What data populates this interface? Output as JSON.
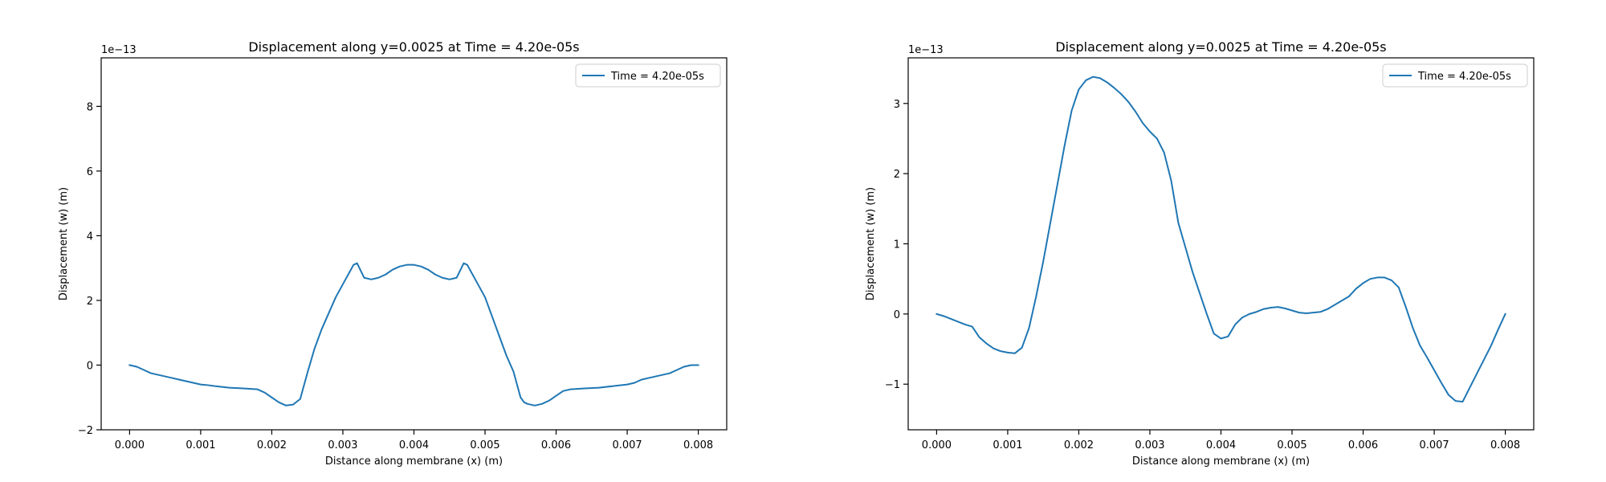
{
  "colors": {
    "line": "#1f77b4",
    "axes": "#000000",
    "legend_border": "#cccccc"
  },
  "chart_data": [
    {
      "type": "line",
      "title": "Displacement along y=0.0025 at Time = 4.20e-05s",
      "xlabel": "Distance along membrane (x) (m)",
      "ylabel": "Displacement (w) (m)",
      "offset_label": "1e−13",
      "xlim": [
        -0.0004,
        0.0084
      ],
      "ylim": [
        -2.0,
        9.5
      ],
      "xticks": [
        0.0,
        0.001,
        0.002,
        0.003,
        0.004,
        0.005,
        0.006,
        0.007,
        0.008
      ],
      "xtick_labels": [
        "0.000",
        "0.001",
        "0.002",
        "0.003",
        "0.004",
        "0.005",
        "0.006",
        "0.007",
        "0.008"
      ],
      "yticks": [
        -2,
        0,
        2,
        4,
        6,
        8
      ],
      "ytick_labels": [
        "−2",
        "0",
        "2",
        "4",
        "6",
        "8"
      ],
      "legend_position": "upper right",
      "series": [
        {
          "name": "Time = 4.20e-05s",
          "x": [
            0.0,
            0.0001,
            0.0002,
            0.0003,
            0.0004,
            0.0005,
            0.0006,
            0.0007,
            0.0008,
            0.0009,
            0.001,
            0.0011,
            0.0012,
            0.0014,
            0.0016,
            0.0018,
            0.0019,
            0.002,
            0.0021,
            0.0022,
            0.0023,
            0.0024,
            0.0025,
            0.0026,
            0.0027,
            0.0028,
            0.0029,
            0.003,
            0.0031,
            0.00315,
            0.0032,
            0.0033,
            0.0034,
            0.0035,
            0.0036,
            0.0037,
            0.0038,
            0.0039,
            0.004,
            0.0041,
            0.0042,
            0.0043,
            0.0044,
            0.0045,
            0.0046,
            0.0047,
            0.00475,
            0.0048,
            0.0049,
            0.005,
            0.0051,
            0.0052,
            0.0053,
            0.0054,
            0.0055,
            0.00555,
            0.0056,
            0.0057,
            0.0058,
            0.0059,
            0.006,
            0.0061,
            0.0062,
            0.0064,
            0.0066,
            0.0068,
            0.007,
            0.0071,
            0.0072,
            0.0073,
            0.0074,
            0.0075,
            0.0076,
            0.0077,
            0.0078,
            0.0079,
            0.008
          ],
          "y": [
            0.0,
            -0.05,
            -0.15,
            -0.25,
            -0.3,
            -0.35,
            -0.4,
            -0.45,
            -0.5,
            -0.55,
            -0.6,
            -0.62,
            -0.65,
            -0.7,
            -0.72,
            -0.75,
            -0.85,
            -1.0,
            -1.15,
            -1.25,
            -1.22,
            -1.05,
            -0.25,
            0.5,
            1.1,
            1.6,
            2.1,
            2.5,
            2.9,
            3.1,
            3.15,
            2.7,
            2.65,
            2.7,
            2.8,
            2.95,
            3.05,
            3.1,
            3.1,
            3.05,
            2.95,
            2.8,
            2.7,
            2.65,
            2.7,
            3.15,
            3.1,
            2.9,
            2.5,
            2.1,
            1.5,
            0.9,
            0.3,
            -0.2,
            -1.0,
            -1.15,
            -1.2,
            -1.25,
            -1.2,
            -1.1,
            -0.95,
            -0.8,
            -0.75,
            -0.72,
            -0.7,
            -0.65,
            -0.6,
            -0.55,
            -0.45,
            -0.4,
            -0.35,
            -0.3,
            -0.25,
            -0.15,
            -0.05,
            0.0,
            0.0
          ]
        }
      ]
    },
    {
      "type": "line",
      "title": "Displacement along y=0.0025 at Time = 4.20e-05s",
      "xlabel": "Distance along membrane (x) (m)",
      "ylabel": "Displacement (w) (m)",
      "offset_label": "1e−13",
      "xlim": [
        -0.0004,
        0.0084
      ],
      "ylim": [
        -1.65,
        3.65
      ],
      "xticks": [
        0.0,
        0.001,
        0.002,
        0.003,
        0.004,
        0.005,
        0.006,
        0.007,
        0.008
      ],
      "xtick_labels": [
        "0.000",
        "0.001",
        "0.002",
        "0.003",
        "0.004",
        "0.005",
        "0.006",
        "0.007",
        "0.008"
      ],
      "yticks": [
        -1,
        0,
        1,
        2,
        3
      ],
      "ytick_labels": [
        "−1",
        "0",
        "1",
        "2",
        "3"
      ],
      "legend_position": "upper right",
      "series": [
        {
          "name": "Time = 4.20e-05s",
          "x": [
            0.0,
            0.0001,
            0.0002,
            0.0003,
            0.0004,
            0.0005,
            0.0006,
            0.0007,
            0.0008,
            0.0009,
            0.001,
            0.0011,
            0.0012,
            0.0013,
            0.0014,
            0.0015,
            0.0016,
            0.0017,
            0.0018,
            0.0019,
            0.002,
            0.0021,
            0.0022,
            0.0023,
            0.0024,
            0.0025,
            0.0026,
            0.0027,
            0.0028,
            0.0029,
            0.003,
            0.0031,
            0.0032,
            0.0033,
            0.0034,
            0.0035,
            0.0036,
            0.0037,
            0.0038,
            0.0039,
            0.004,
            0.0041,
            0.0042,
            0.0043,
            0.0044,
            0.0045,
            0.0046,
            0.0047,
            0.0048,
            0.0049,
            0.005,
            0.0051,
            0.0052,
            0.0053,
            0.0054,
            0.0055,
            0.0056,
            0.0057,
            0.0058,
            0.0059,
            0.006,
            0.0061,
            0.0062,
            0.0063,
            0.0064,
            0.0065,
            0.0066,
            0.0067,
            0.0068,
            0.0069,
            0.007,
            0.0071,
            0.0072,
            0.0073,
            0.0074,
            0.0075,
            0.0076,
            0.0077,
            0.0078,
            0.0079,
            0.008
          ],
          "y": [
            0.0,
            -0.03,
            -0.07,
            -0.11,
            -0.15,
            -0.18,
            -0.33,
            -0.42,
            -0.49,
            -0.53,
            -0.55,
            -0.56,
            -0.48,
            -0.2,
            0.25,
            0.75,
            1.3,
            1.85,
            2.4,
            2.9,
            3.2,
            3.33,
            3.38,
            3.36,
            3.3,
            3.22,
            3.13,
            3.02,
            2.88,
            2.72,
            2.6,
            2.5,
            2.3,
            1.9,
            1.3,
            0.95,
            0.6,
            0.3,
            0.0,
            -0.28,
            -0.35,
            -0.32,
            -0.15,
            -0.05,
            0.0,
            0.03,
            0.07,
            0.09,
            0.1,
            0.08,
            0.05,
            0.02,
            0.01,
            0.02,
            0.03,
            0.07,
            0.13,
            0.19,
            0.25,
            0.36,
            0.44,
            0.5,
            0.52,
            0.52,
            0.48,
            0.38,
            0.1,
            -0.2,
            -0.45,
            -0.62,
            -0.8,
            -0.98,
            -1.15,
            -1.24,
            -1.25,
            -1.05,
            -0.85,
            -0.65,
            -0.45,
            -0.22,
            0.0
          ]
        }
      ]
    }
  ]
}
